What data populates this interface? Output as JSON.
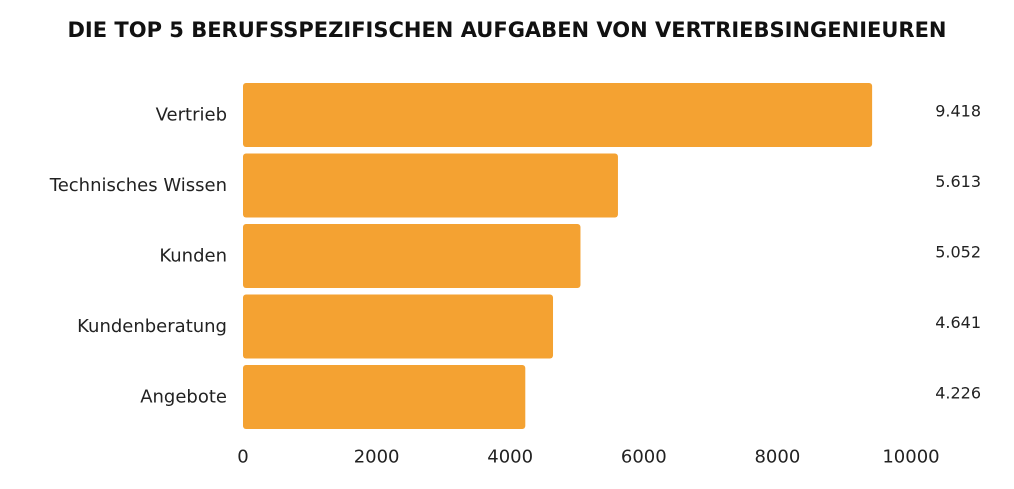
{
  "chart_data": {
    "type": "bar",
    "orientation": "horizontal",
    "title": "DIE TOP 5 BERUFSSPEZIFISCHEN AUFGABEN VON VERTRIEBSINGENIEUREN",
    "categories": [
      "Vertrieb",
      "Technisches Wissen",
      "Kunden",
      "Kundenberatung",
      "Angebote"
    ],
    "values": [
      9418,
      5613,
      5052,
      4641,
      4226
    ],
    "value_labels": [
      "9.418",
      "5.613",
      "5.052",
      "4.641",
      "4.226"
    ],
    "xlim": [
      0,
      10000
    ],
    "xticks": [
      0,
      2000,
      4000,
      6000,
      8000,
      10000
    ],
    "xtick_labels": [
      "0",
      "2000",
      "4000",
      "6000",
      "8000",
      "10000"
    ],
    "bar_color": "#F4A232",
    "grid": false,
    "legend": "none"
  }
}
